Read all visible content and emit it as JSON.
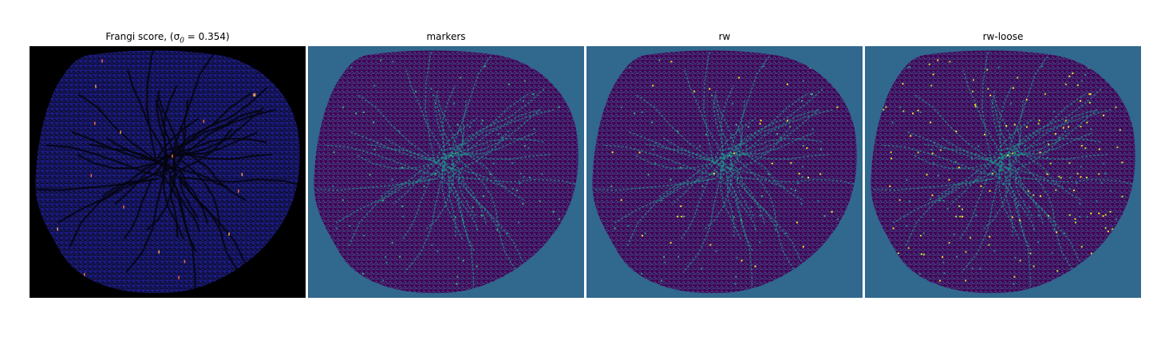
{
  "panels": [
    {
      "title": "Frangi score, (σ",
      "title_sub": "0",
      "title_rest": " = 0.354)",
      "background": "#000000",
      "fill": "#1a1a80",
      "line": "#080808",
      "accent": [
        "#f4a259",
        "#ff6a3d"
      ]
    },
    {
      "title": "markers",
      "background": "#31688e",
      "fill": "#440154",
      "line": "#3b528b",
      "accent": [
        "#21918c",
        "#35b779"
      ]
    },
    {
      "title": "rw",
      "background": "#31688e",
      "fill": "#440154",
      "line": "#3b528b",
      "accent": [
        "#21918c",
        "#35b779",
        "#fde725"
      ]
    },
    {
      "title": "rw-loose",
      "background": "#31688e",
      "fill": "#440154",
      "line": "#3b528b",
      "accent": [
        "#21918c",
        "#fde725",
        "#b5de2b"
      ]
    }
  ]
}
